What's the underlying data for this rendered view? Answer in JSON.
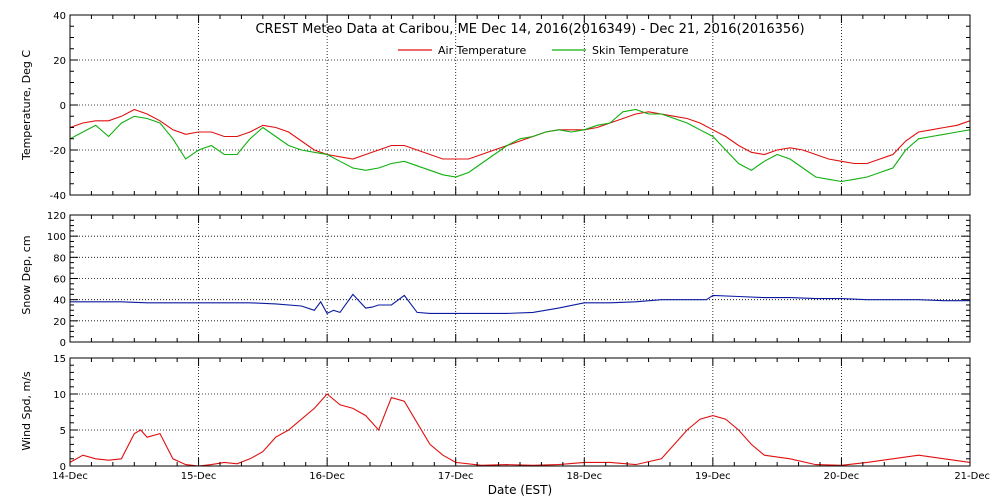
{
  "title": "CREST Meteo Data at Caribou, ME   Dec 14, 2016(2016349) - Dec 21, 2016(2016356)",
  "xlabel": "Date (EST)",
  "colors": {
    "air": "#e01010",
    "skin": "#10b010",
    "snow": "#0a1aa0",
    "wind": "#e01010"
  },
  "chart_data": [
    {
      "type": "line",
      "panel": "temperature",
      "ylabel": "Temperature, Deg C",
      "ylim": [
        -40,
        40
      ],
      "yticks": [
        -40,
        -20,
        0,
        20,
        40
      ],
      "xlim": [
        0,
        7
      ],
      "x_tick_labels": [
        "14-Dec",
        "15-Dec",
        "16-Dec",
        "17-Dec",
        "18-Dec",
        "19-Dec",
        "20-Dec",
        "21-Dec"
      ],
      "grid": true,
      "legend": "top-center",
      "series": [
        {
          "name": "Air Temperature",
          "x": [
            0.0,
            0.1,
            0.2,
            0.3,
            0.4,
            0.5,
            0.6,
            0.7,
            0.8,
            0.9,
            1.0,
            1.1,
            1.2,
            1.3,
            1.4,
            1.5,
            1.6,
            1.7,
            1.8,
            1.9,
            2.0,
            2.1,
            2.2,
            2.3,
            2.4,
            2.5,
            2.6,
            2.7,
            2.8,
            2.9,
            3.0,
            3.1,
            3.2,
            3.3,
            3.4,
            3.5,
            3.6,
            3.7,
            3.8,
            3.9,
            4.0,
            4.1,
            4.2,
            4.3,
            4.4,
            4.5,
            4.6,
            4.7,
            4.8,
            4.9,
            5.0,
            5.1,
            5.2,
            5.3,
            5.4,
            5.5,
            5.6,
            5.7,
            5.8,
            5.9,
            6.0,
            6.1,
            6.2,
            6.3,
            6.4,
            6.5,
            6.6,
            6.7,
            6.8,
            6.9,
            7.0
          ],
          "values": [
            -10,
            -8,
            -7,
            -7,
            -5,
            -2,
            -4,
            -7,
            -11,
            -13,
            -12,
            -12,
            -14,
            -14,
            -12,
            -9,
            -10,
            -12,
            -16,
            -20,
            -22,
            -23,
            -24,
            -22,
            -20,
            -18,
            -18,
            -20,
            -22,
            -24,
            -24,
            -24,
            -22,
            -20,
            -18,
            -16,
            -14,
            -12,
            -11,
            -11,
            -11,
            -10,
            -8,
            -6,
            -4,
            -3,
            -4,
            -5,
            -6,
            -8,
            -11,
            -14,
            -18,
            -21,
            -22,
            -20,
            -19,
            -20,
            -22,
            -24,
            -25,
            -26,
            -26,
            -24,
            -22,
            -16,
            -12,
            -11,
            -10,
            -9,
            -7
          ]
        },
        {
          "name": "Skin Temperature",
          "x": [
            0.0,
            0.1,
            0.2,
            0.3,
            0.4,
            0.5,
            0.6,
            0.7,
            0.8,
            0.9,
            1.0,
            1.1,
            1.2,
            1.3,
            1.4,
            1.5,
            1.6,
            1.7,
            1.8,
            1.9,
            2.0,
            2.1,
            2.2,
            2.3,
            2.4,
            2.5,
            2.6,
            2.7,
            2.8,
            2.9,
            3.0,
            3.1,
            3.2,
            3.3,
            3.4,
            3.5,
            3.6,
            3.7,
            3.8,
            3.9,
            4.0,
            4.1,
            4.2,
            4.3,
            4.4,
            4.5,
            4.6,
            4.7,
            4.8,
            4.9,
            5.0,
            5.1,
            5.2,
            5.3,
            5.4,
            5.5,
            5.6,
            5.7,
            5.8,
            5.9,
            6.0,
            6.1,
            6.2,
            6.3,
            6.4,
            6.5,
            6.6,
            6.7,
            6.8,
            6.9,
            7.0
          ],
          "values": [
            -15,
            -12,
            -9,
            -14,
            -8,
            -5,
            -6,
            -8,
            -15,
            -24,
            -20,
            -18,
            -22,
            -22,
            -15,
            -10,
            -14,
            -18,
            -20,
            -21,
            -22,
            -25,
            -28,
            -29,
            -28,
            -26,
            -25,
            -27,
            -29,
            -31,
            -32,
            -30,
            -26,
            -22,
            -18,
            -15,
            -14,
            -12,
            -11,
            -12,
            -11,
            -9,
            -8,
            -3,
            -2,
            -4,
            -4,
            -6,
            -8,
            -11,
            -14,
            -20,
            -26,
            -29,
            -25,
            -22,
            -24,
            -28,
            -32,
            -33,
            -34,
            -33,
            -32,
            -30,
            -28,
            -20,
            -15,
            -14,
            -13,
            -12,
            -11
          ]
        }
      ]
    },
    {
      "type": "line",
      "panel": "snow",
      "ylabel": "Snow Dep, cm",
      "ylim": [
        0,
        120
      ],
      "yticks": [
        0,
        20,
        40,
        60,
        80,
        100,
        120
      ],
      "xlim": [
        0,
        7
      ],
      "grid": true,
      "series": [
        {
          "name": "",
          "x": [
            0.0,
            0.2,
            0.4,
            0.6,
            0.8,
            1.0,
            1.2,
            1.4,
            1.6,
            1.8,
            1.9,
            1.95,
            2.0,
            2.05,
            2.1,
            2.2,
            2.3,
            2.35,
            2.4,
            2.5,
            2.6,
            2.7,
            2.8,
            3.0,
            3.2,
            3.4,
            3.6,
            3.8,
            4.0,
            4.2,
            4.4,
            4.6,
            4.8,
            4.95,
            5.0,
            5.2,
            5.4,
            5.6,
            5.8,
            6.0,
            6.2,
            6.4,
            6.6,
            6.8,
            7.0
          ],
          "values": [
            38,
            38,
            38,
            37,
            37,
            37,
            37,
            37,
            36,
            34,
            30,
            38,
            27,
            30,
            28,
            45,
            32,
            33,
            35,
            35,
            44,
            28,
            27,
            27,
            27,
            27,
            28,
            32,
            37,
            37,
            38,
            40,
            40,
            40,
            44,
            43,
            42,
            42,
            41,
            41,
            40,
            40,
            40,
            39,
            39
          ]
        }
      ]
    },
    {
      "type": "line",
      "panel": "wind",
      "ylabel": "Wind Spd, m/s",
      "ylim": [
        0,
        15
      ],
      "yticks": [
        0,
        5,
        10,
        15
      ],
      "xlim": [
        0,
        7
      ],
      "grid": true,
      "series": [
        {
          "name": "",
          "x": [
            0.0,
            0.1,
            0.2,
            0.3,
            0.4,
            0.5,
            0.55,
            0.6,
            0.7,
            0.8,
            0.9,
            1.0,
            1.1,
            1.2,
            1.3,
            1.4,
            1.5,
            1.6,
            1.7,
            1.8,
            1.9,
            2.0,
            2.1,
            2.2,
            2.3,
            2.4,
            2.5,
            2.6,
            2.7,
            2.8,
            2.9,
            3.0,
            3.2,
            3.4,
            3.6,
            3.8,
            4.0,
            4.2,
            4.4,
            4.6,
            4.7,
            4.8,
            4.9,
            5.0,
            5.1,
            5.2,
            5.3,
            5.4,
            5.6,
            5.8,
            6.0,
            6.2,
            6.4,
            6.6,
            6.8,
            7.0
          ],
          "values": [
            0.5,
            1.5,
            1.0,
            0.8,
            1.0,
            4.5,
            5.0,
            4.0,
            4.5,
            1.0,
            0.2,
            0.0,
            0.2,
            0.5,
            0.3,
            1.0,
            2.0,
            4.0,
            5.0,
            6.5,
            8.0,
            10.0,
            8.5,
            8.0,
            7.0,
            5.0,
            9.5,
            9.0,
            6.0,
            3.0,
            1.5,
            0.5,
            0.1,
            0.2,
            0.1,
            0.2,
            0.5,
            0.5,
            0.2,
            1.0,
            3.0,
            5.0,
            6.5,
            7.0,
            6.5,
            5.0,
            3.0,
            1.5,
            1.0,
            0.2,
            0.1,
            0.5,
            1.0,
            1.5,
            1.0,
            0.5
          ]
        }
      ]
    }
  ]
}
